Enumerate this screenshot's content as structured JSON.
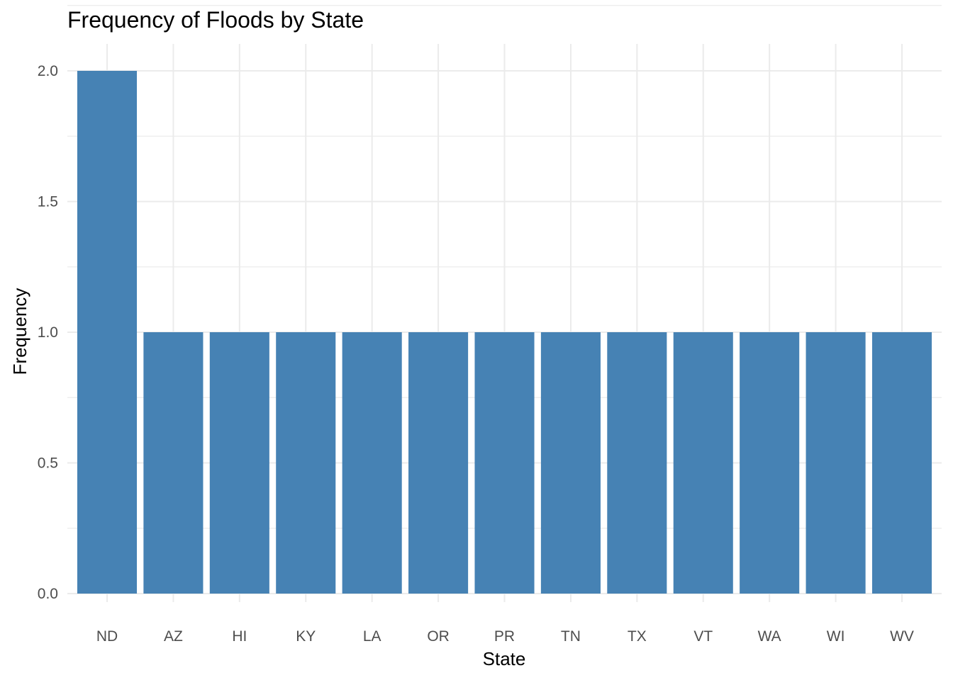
{
  "chart_data": {
    "type": "bar",
    "title": "Frequency of Floods by State",
    "xlabel": "State",
    "ylabel": "Frequency",
    "categories": [
      "ND",
      "AZ",
      "HI",
      "KY",
      "LA",
      "OR",
      "PR",
      "TN",
      "TX",
      "VT",
      "WA",
      "WI",
      "WV"
    ],
    "values": [
      2,
      1,
      1,
      1,
      1,
      1,
      1,
      1,
      1,
      1,
      1,
      1,
      1
    ],
    "ylim": [
      0,
      2
    ],
    "yticks": [
      "0.0",
      "0.5",
      "1.0",
      "1.5",
      "2.0"
    ],
    "grid": true,
    "legend": "none",
    "bar_color": "#4682b4",
    "grid_color": "#ebebeb"
  }
}
